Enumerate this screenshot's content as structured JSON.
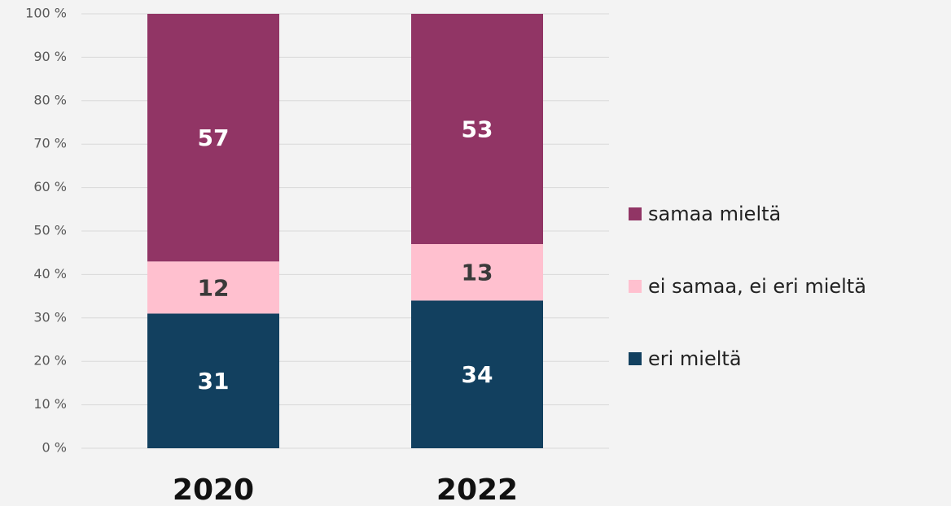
{
  "chart_data": {
    "type": "stacked_bar",
    "categories": [
      "2020",
      "2022"
    ],
    "series": [
      {
        "name": "eri mieltä",
        "color": "#12405f",
        "values": [
          31,
          34
        ]
      },
      {
        "name": "ei samaa, ei eri mieltä",
        "color": "#ffc0cf",
        "values": [
          12,
          13
        ]
      },
      {
        "name": "samaa mieltä",
        "color": "#913565",
        "values": [
          57,
          53
        ]
      }
    ],
    "ylim": [
      0,
      100
    ],
    "yticks": [
      {
        "value": 0,
        "label": "0 %"
      },
      {
        "value": 10,
        "label": "10 %"
      },
      {
        "value": 20,
        "label": "20 %"
      },
      {
        "value": 30,
        "label": "30 %"
      },
      {
        "value": 40,
        "label": "40 %"
      },
      {
        "value": 50,
        "label": "50 %"
      },
      {
        "value": 60,
        "label": "60 %"
      },
      {
        "value": 70,
        "label": "70 %"
      },
      {
        "value": 80,
        "label": "80 %"
      },
      {
        "value": 90,
        "label": "90 %"
      },
      {
        "value": 100,
        "label": "100 %"
      }
    ],
    "grid": true,
    "legend_position": "right"
  }
}
